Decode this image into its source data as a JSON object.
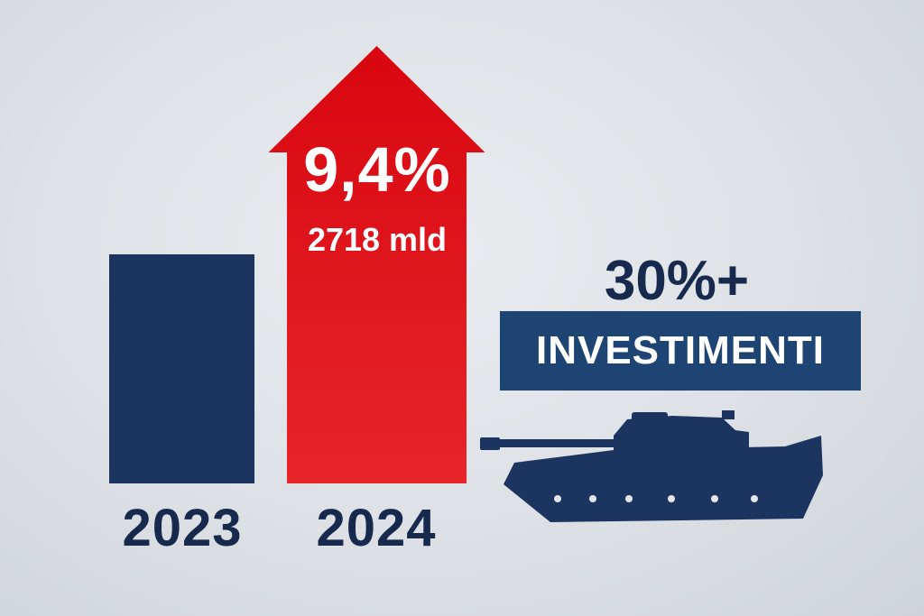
{
  "chart_data": {
    "type": "bar",
    "categories": [
      "2023",
      "2024"
    ],
    "values": [
      null,
      2718
    ],
    "value_labels": [
      "",
      "2718 mld"
    ],
    "growth_label": "9,4%",
    "xlabel": "",
    "ylabel": "",
    "title": "",
    "bar_colors": [
      "#1b3560",
      "#d9101a"
    ],
    "grid": false,
    "legend": "none",
    "bar_heights_relative": [
      0.62,
      1.0
    ]
  },
  "annotation": {
    "investment_pct": "30%+",
    "investment_label": "INVESTIMENTI"
  },
  "icons": [
    "tank-icon"
  ],
  "colors": {
    "navy": "#1b3560",
    "red": "#d9101a",
    "badge": "#1d4473",
    "text_dark": "#172a4d",
    "background": "#dde1e5"
  }
}
